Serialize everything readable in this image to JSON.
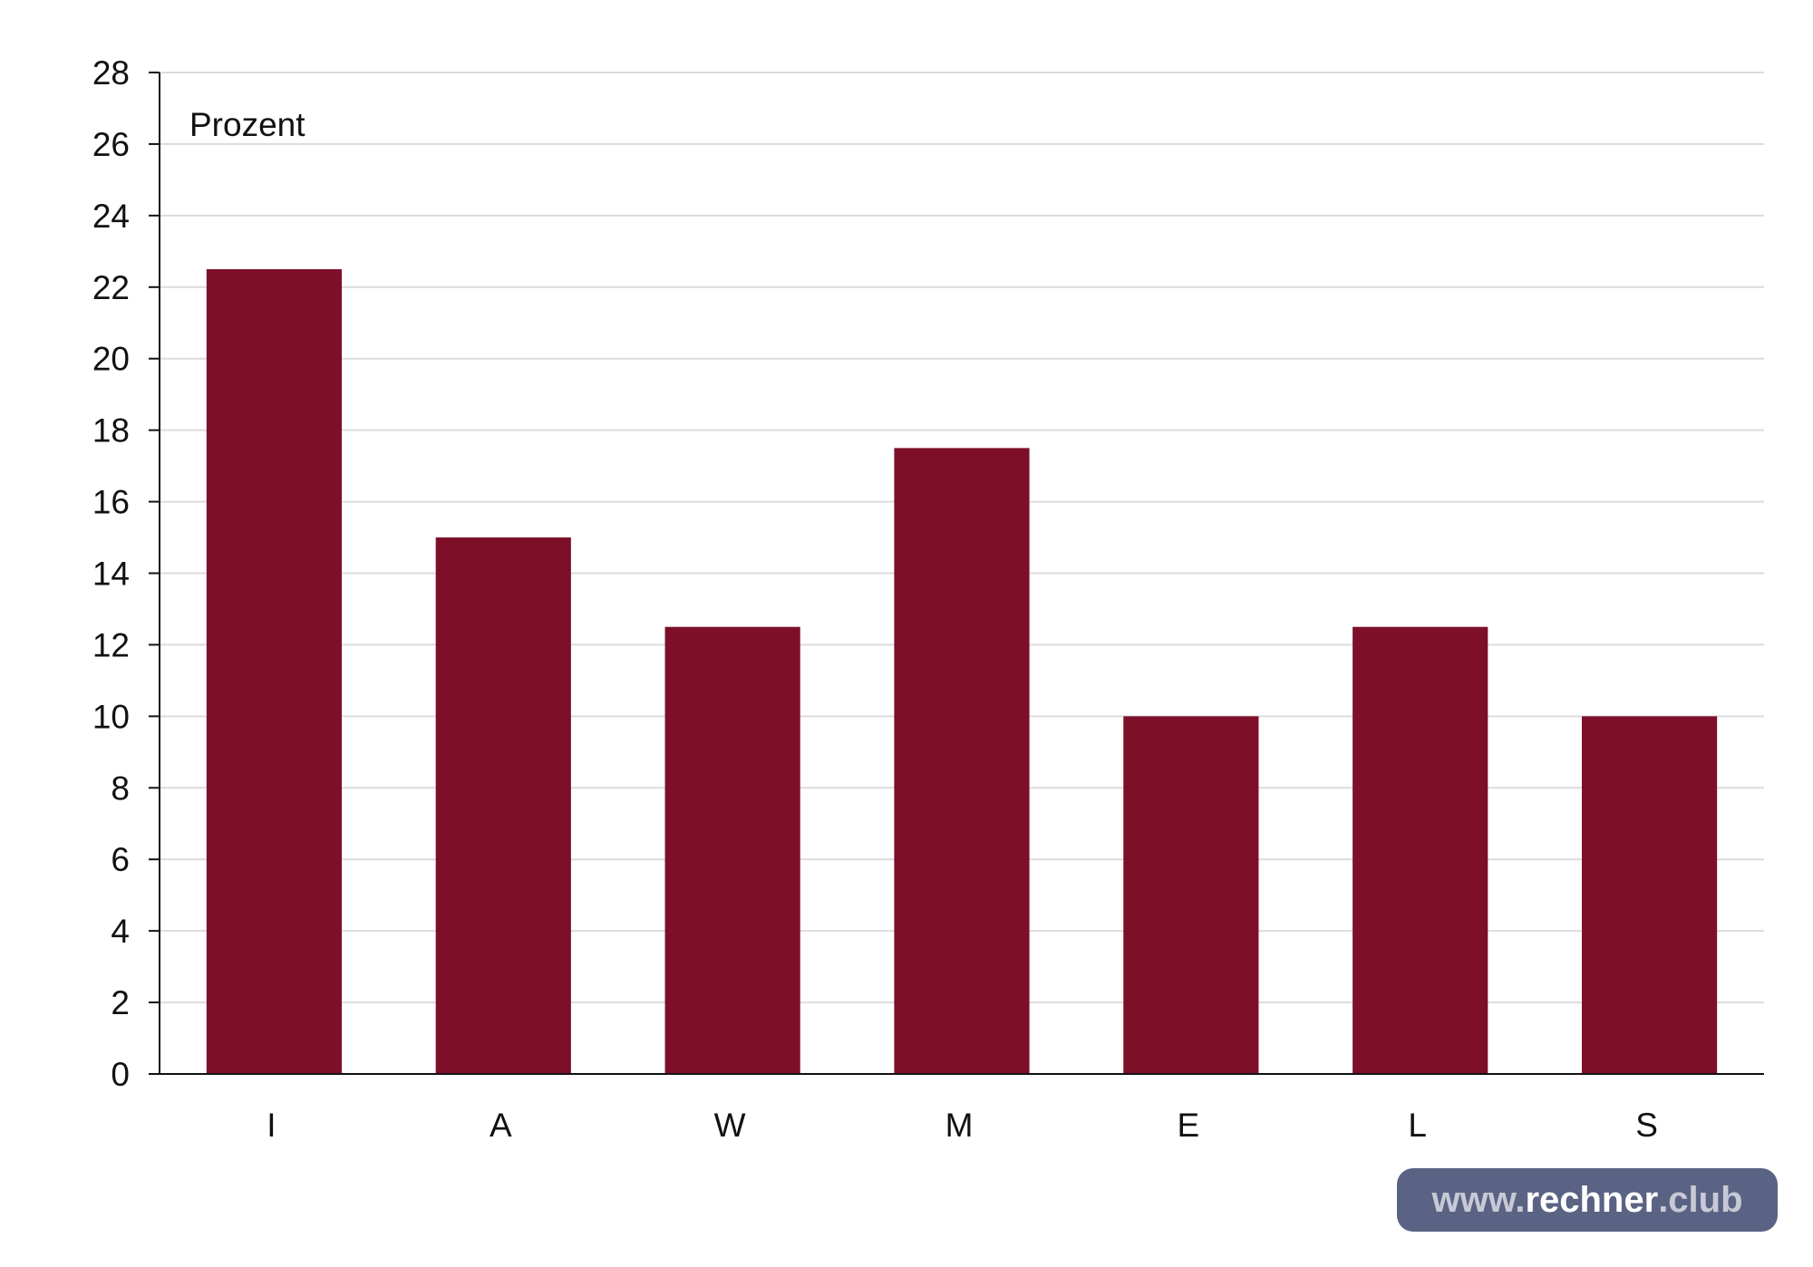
{
  "chart_data": {
    "type": "bar",
    "ylabel": "Prozent",
    "categories": [
      "I",
      "A",
      "W",
      "M",
      "E",
      "L",
      "S"
    ],
    "values": [
      22.5,
      15,
      12.5,
      17.5,
      10,
      12.5,
      10
    ],
    "ylim": [
      0,
      28
    ],
    "yticks": [
      0,
      2,
      4,
      6,
      8,
      10,
      12,
      14,
      16,
      18,
      20,
      22,
      24,
      26,
      28
    ],
    "grid": true,
    "bar_color": "#7d0f29"
  },
  "watermark": {
    "prefix": "www.",
    "brand": "rechner",
    "suffix": ".club"
  }
}
